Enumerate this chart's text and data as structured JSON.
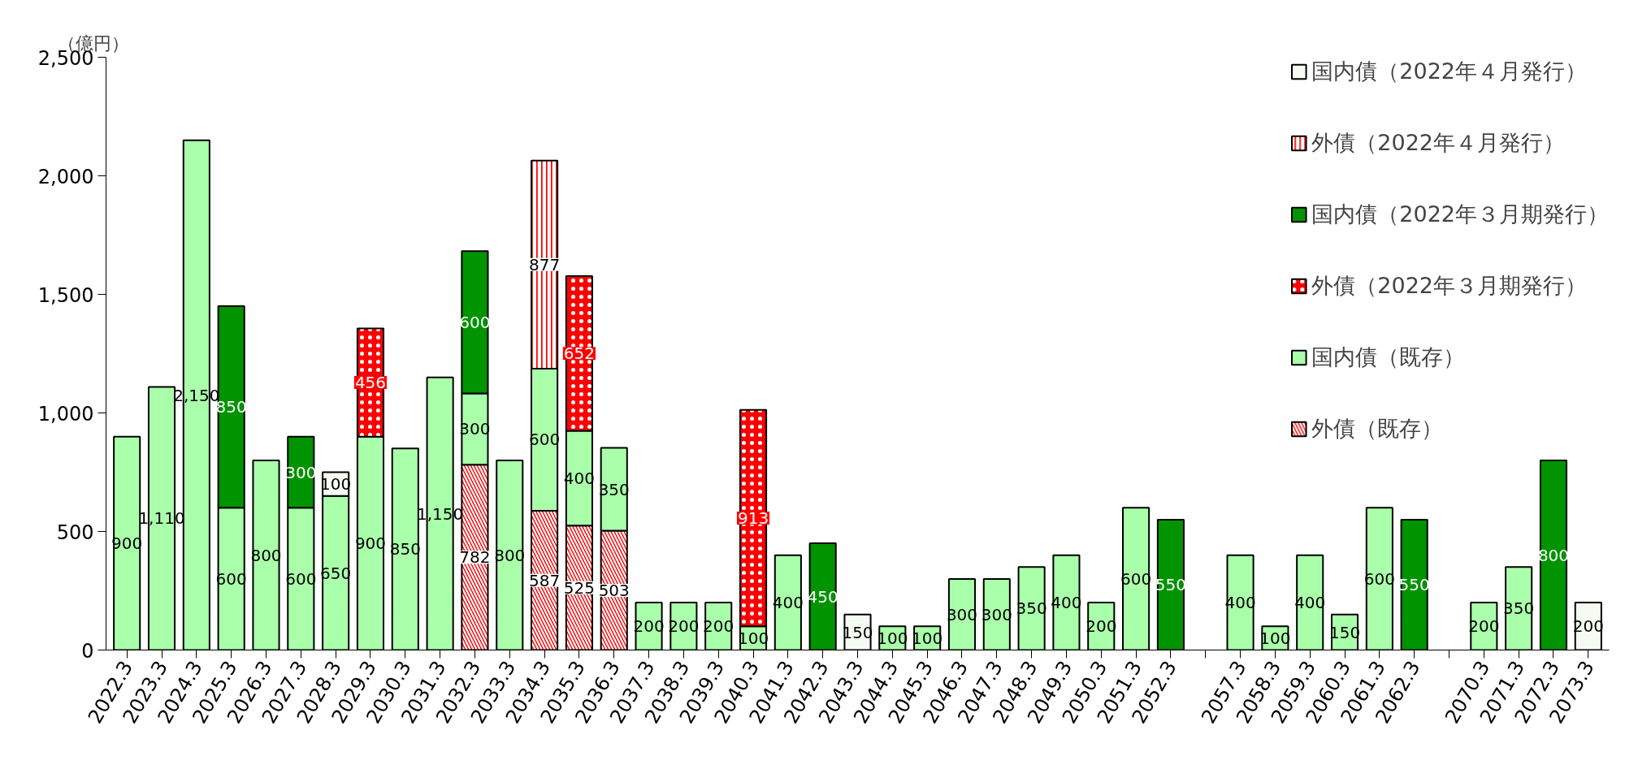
{
  "chart_data": {
    "type": "bar",
    "stacked": true,
    "ylabel": "（億円）",
    "data_labels": true,
    "legend": "top right",
    "grid": false,
    "categories": [
      "2022.3",
      "2023.3",
      "2024.3",
      "2025.3",
      "2026.3",
      "2027.3",
      "2028.3",
      "2029.3",
      "2030.3",
      "2031.3",
      "2032.3",
      "2033.3",
      "2034.3",
      "2035.3",
      "2036.3",
      "2037.3",
      "2038.3",
      "2039.3",
      "2040.3",
      "2041.3",
      "2042.3",
      "2043.3",
      "2044.3",
      "2045.3",
      "2046.3",
      "2047.3",
      "2048.3",
      "2049.3",
      "2050.3",
      "2051.3",
      "2052.3",
      null,
      "2057.3",
      "2058.3",
      "2059.3",
      "2060.3",
      "2061.3",
      "2062.3",
      null,
      "2070.3",
      "2071.3",
      "2072.3",
      "2073.3"
    ],
    "ylim": [
      0,
      2500
    ],
    "yticks": [
      0,
      {
        "value": 500,
        "label": "500"
      },
      {
        "value": 1000,
        "label": "1,000"
      },
      {
        "value": 1500,
        "label": "1,500"
      },
      {
        "value": 2000,
        "label": "2,000"
      },
      {
        "value": 2500,
        "label": "2,500"
      }
    ],
    "series": [
      {
        "name": "外債（既存）",
        "color": "#ff0000",
        "values": [
          null,
          null,
          null,
          null,
          null,
          null,
          null,
          null,
          null,
          null,
          782,
          null,
          587,
          525,
          503,
          null,
          null,
          null,
          null,
          null,
          null,
          null,
          null,
          null,
          null,
          null,
          null,
          null,
          null,
          null,
          null,
          null,
          null,
          null,
          null,
          null,
          null,
          null,
          null,
          null,
          null,
          null,
          null
        ]
      },
      {
        "name": "国内債（既存）",
        "color": "#aaffaa",
        "value_labels": [
          "900",
          "1,110",
          "2,150",
          "600",
          "800",
          "600",
          "650",
          "900",
          "850",
          "1,150",
          "300",
          "800",
          "600",
          "400",
          "350",
          "200",
          "200",
          "200",
          "100",
          "400",
          null,
          null,
          "100",
          "100",
          "300",
          "300",
          "350",
          "400",
          "200",
          "600",
          null,
          null,
          "400",
          "100",
          "400",
          "150",
          "600",
          null,
          null,
          "200",
          "350",
          null,
          null
        ],
        "values": [
          900,
          1110,
          2150,
          600,
          800,
          600,
          650,
          900,
          850,
          1150,
          300,
          800,
          600,
          400,
          350,
          200,
          200,
          200,
          100,
          400,
          null,
          null,
          100,
          100,
          300,
          300,
          350,
          400,
          200,
          600,
          null,
          null,
          400,
          100,
          400,
          150,
          600,
          null,
          null,
          200,
          350,
          null,
          null
        ]
      },
      {
        "name": "外債（2022年３月期発行）",
        "color": "#ff0000",
        "values": [
          null,
          null,
          null,
          null,
          null,
          null,
          null,
          456,
          null,
          null,
          null,
          null,
          null,
          652,
          null,
          null,
          null,
          null,
          913,
          null,
          null,
          null,
          null,
          null,
          null,
          null,
          null,
          null,
          null,
          null,
          null,
          null,
          null,
          null,
          null,
          null,
          null,
          null,
          null,
          null,
          null,
          null,
          null
        ]
      },
      {
        "name": "国内債（2022年３月期発行）",
        "color": "#009400",
        "values": [
          null,
          null,
          null,
          850,
          null,
          300,
          null,
          null,
          null,
          null,
          600,
          null,
          null,
          null,
          null,
          null,
          null,
          null,
          null,
          null,
          450,
          null,
          null,
          null,
          null,
          null,
          null,
          null,
          null,
          null,
          550,
          null,
          null,
          null,
          null,
          null,
          null,
          550,
          null,
          null,
          null,
          800,
          null
        ]
      },
      {
        "name": "外債（2022年４月発行）",
        "color": "#ff0000",
        "values": [
          null,
          null,
          null,
          null,
          null,
          null,
          null,
          null,
          null,
          null,
          null,
          null,
          877,
          null,
          null,
          null,
          null,
          null,
          null,
          null,
          null,
          null,
          null,
          null,
          null,
          null,
          null,
          null,
          null,
          null,
          null,
          null,
          null,
          null,
          null,
          null,
          null,
          null,
          null,
          null,
          null,
          null,
          null
        ]
      },
      {
        "name": "国内債（2022年４月発行）",
        "color": "#f5faf2",
        "values": [
          null,
          null,
          null,
          null,
          null,
          null,
          100,
          null,
          null,
          null,
          null,
          null,
          null,
          null,
          null,
          null,
          null,
          null,
          null,
          null,
          null,
          150,
          null,
          null,
          null,
          null,
          null,
          null,
          null,
          null,
          null,
          null,
          null,
          null,
          null,
          null,
          null,
          null,
          null,
          null,
          null,
          null,
          200
        ]
      }
    ]
  }
}
